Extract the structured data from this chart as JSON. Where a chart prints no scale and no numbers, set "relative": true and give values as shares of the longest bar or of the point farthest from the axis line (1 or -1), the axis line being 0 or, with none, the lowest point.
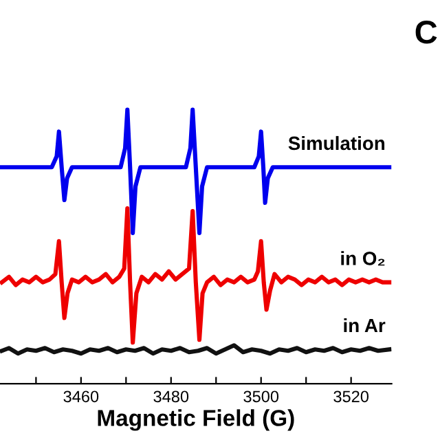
{
  "chart_data": {
    "type": "line",
    "relative": true,
    "xlabel": "Magnetic Field (G)",
    "annotations": [
      "C"
    ],
    "xlim": [
      3442,
      3529
    ],
    "xticks": [
      {
        "value": 3450,
        "label": null
      },
      3460,
      {
        "value": 3470,
        "label": null
      },
      3480,
      {
        "value": 3490,
        "label": null
      },
      3500,
      {
        "value": 3510,
        "label": null
      },
      3520
    ],
    "grid": false,
    "legend": false,
    "tick_labels": "x",
    "marker": "none",
    "line_style": "solid",
    "series": [
      {
        "name": "Simulation",
        "color": "#0000ee",
        "x": [
          3442.4,
          3453.5,
          3454.6,
          3455.1,
          3455.7,
          3456.3,
          3456.9,
          3458,
          3468.8,
          3469.8,
          3470.3,
          3470.9,
          3471.5,
          3472.1,
          3473.2,
          3483.3,
          3484.3,
          3484.8,
          3485.5,
          3486.3,
          3486.9,
          3488,
          3498.5,
          3499.5,
          3500,
          3500.5,
          3500.9,
          3501.5,
          3502.6,
          3528.5
        ],
        "values": [
          0.79,
          0.79,
          0.83,
          0.92,
          0.79,
          0.67,
          0.75,
          0.79,
          0.79,
          0.86,
          1.0,
          0.79,
          0.55,
          0.72,
          0.79,
          0.79,
          0.86,
          1.0,
          0.79,
          0.55,
          0.72,
          0.79,
          0.79,
          0.83,
          0.92,
          0.79,
          0.66,
          0.75,
          0.79,
          0.79
        ]
      },
      {
        "name": "in O₂",
        "color": "#ee0000",
        "x": [
          3442.4,
          3444,
          3445.5,
          3447,
          3448.5,
          3450,
          3451.5,
          3453,
          3454.3,
          3455.1,
          3455.7,
          3456.3,
          3457,
          3458,
          3459.5,
          3461,
          3462.5,
          3464,
          3465.5,
          3467,
          3468.5,
          3469.6,
          3470.3,
          3470.9,
          3471.5,
          3472.3,
          3473.5,
          3475,
          3476.5,
          3478,
          3479.5,
          3481,
          3482.5,
          3484,
          3484.8,
          3485.5,
          3486.3,
          3487,
          3488,
          3489.5,
          3491,
          3492.5,
          3494,
          3495.5,
          3497,
          3498.5,
          3499.3,
          3500,
          3500.6,
          3501.2,
          3502,
          3503,
          3504.5,
          3506,
          3507.5,
          3509,
          3510.5,
          3512,
          3513.5,
          3515,
          3516.5,
          3518,
          3519.5,
          3521,
          3522.5,
          3524,
          3525.5,
          3527,
          3528.5
        ],
        "values": [
          0.37,
          0.39,
          0.36,
          0.38,
          0.37,
          0.39,
          0.37,
          0.38,
          0.4,
          0.52,
          0.37,
          0.24,
          0.33,
          0.38,
          0.37,
          0.39,
          0.37,
          0.38,
          0.4,
          0.37,
          0.39,
          0.42,
          0.64,
          0.37,
          0.15,
          0.33,
          0.39,
          0.37,
          0.4,
          0.38,
          0.41,
          0.38,
          0.4,
          0.42,
          0.63,
          0.37,
          0.16,
          0.33,
          0.37,
          0.39,
          0.36,
          0.38,
          0.37,
          0.39,
          0.37,
          0.38,
          0.41,
          0.52,
          0.37,
          0.27,
          0.34,
          0.4,
          0.37,
          0.39,
          0.38,
          0.36,
          0.38,
          0.37,
          0.39,
          0.37,
          0.38,
          0.36,
          0.38,
          0.37,
          0.38,
          0.37,
          0.38,
          0.37,
          0.37
        ]
      },
      {
        "name": "in Ar",
        "color": "#111111",
        "x": [
          3442.4,
          3444,
          3446,
          3448,
          3450,
          3452,
          3454,
          3456,
          3458,
          3460,
          3462,
          3464,
          3466,
          3468,
          3470,
          3472,
          3474,
          3476,
          3478,
          3480,
          3482,
          3484,
          3486,
          3488,
          3490,
          3492,
          3494,
          3496,
          3498,
          3500,
          3502,
          3504,
          3506,
          3508,
          3510,
          3512,
          3514,
          3516,
          3518,
          3520,
          3522,
          3524,
          3526,
          3528.5
        ],
        "values": [
          0.12,
          0.13,
          0.11,
          0.125,
          0.12,
          0.13,
          0.115,
          0.125,
          0.12,
          0.11,
          0.125,
          0.12,
          0.13,
          0.115,
          0.125,
          0.12,
          0.13,
          0.11,
          0.125,
          0.12,
          0.13,
          0.115,
          0.12,
          0.13,
          0.11,
          0.125,
          0.14,
          0.115,
          0.125,
          0.12,
          0.11,
          0.125,
          0.12,
          0.13,
          0.115,
          0.125,
          0.12,
          0.13,
          0.115,
          0.125,
          0.12,
          0.13,
          0.12,
          0.125
        ]
      }
    ]
  }
}
